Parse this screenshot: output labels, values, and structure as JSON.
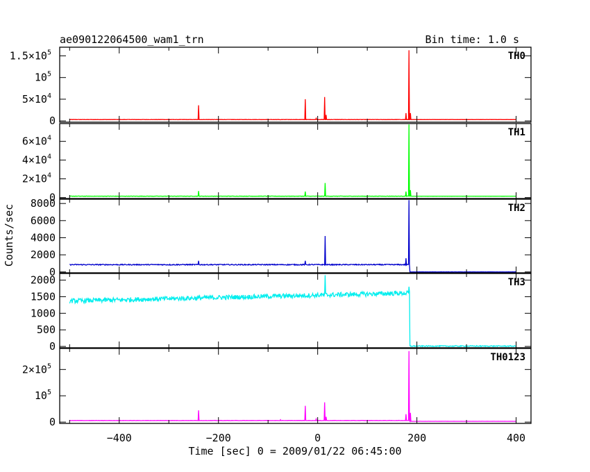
{
  "chart_data": {
    "type": "line",
    "title": "ae090122064500_wam1_trn",
    "bin_time": "Bin time: 1.0 s",
    "xlabel": "Time [sec] 0 = 2009/01/22 06:45:00",
    "ylabel": "Counts/sec",
    "xlim": [
      -520,
      430
    ],
    "x_data_range": [
      -500,
      400
    ],
    "grid": false,
    "x_ticks": [
      {
        "value": -400,
        "label": "−400"
      },
      {
        "value": -200,
        "label": "−200"
      },
      {
        "value": 0,
        "label": "0"
      },
      {
        "value": 200,
        "label": "200"
      },
      {
        "value": 400,
        "label": "400"
      }
    ],
    "panels": [
      {
        "name": "TH0",
        "color": "#ff0000",
        "ylim": [
          -3000,
          170000
        ],
        "baseline": 3000,
        "noise": 300,
        "after_drop": 3000,
        "spikes": [
          [
            -400,
            3500
          ],
          [
            -393,
            3000
          ],
          [
            -240,
            36000
          ],
          [
            -75,
            2500
          ],
          [
            -25,
            50000
          ],
          [
            -3,
            6000
          ],
          [
            14,
            55000
          ],
          [
            17,
            14000
          ],
          [
            178,
            18000
          ],
          [
            184,
            163000
          ],
          [
            187,
            18000
          ]
        ],
        "y_ticks": [
          {
            "value": 150000,
            "label": "1.5×10",
            "exp": "5"
          },
          {
            "value": 100000,
            "label": "10",
            "exp": "5"
          },
          {
            "value": 50000,
            "label": "5×10",
            "exp": "4"
          },
          {
            "value": 0,
            "label": "0",
            "exp": ""
          }
        ]
      },
      {
        "name": "TH1",
        "color": "#00ff00",
        "ylim": [
          -1000,
          79000
        ],
        "baseline": 1500,
        "noise": 200,
        "after_drop": 1500,
        "spikes": [
          [
            -240,
            7000
          ],
          [
            -25,
            6500
          ],
          [
            15,
            15500
          ],
          [
            178,
            6500
          ],
          [
            184,
            78000
          ],
          [
            187,
            8000
          ]
        ],
        "y_ticks": [
          {
            "value": 60000,
            "label": "6×10",
            "exp": "4"
          },
          {
            "value": 40000,
            "label": "4×10",
            "exp": "4"
          },
          {
            "value": 20000,
            "label": "2×10",
            "exp": "4"
          },
          {
            "value": 0,
            "label": "0",
            "exp": ""
          }
        ]
      },
      {
        "name": "TH2",
        "color": "#0000cc",
        "ylim": [
          -100,
          8500
        ],
        "baseline": 850,
        "noise": 60,
        "after_drop": 0,
        "spikes": [
          [
            -240,
            1300
          ],
          [
            -25,
            1300
          ],
          [
            15,
            4200
          ],
          [
            178,
            1600
          ],
          [
            184,
            8400
          ]
        ],
        "y_ticks": [
          {
            "value": 8000,
            "label": "8000",
            "exp": ""
          },
          {
            "value": 6000,
            "label": "6000",
            "exp": ""
          },
          {
            "value": 4000,
            "label": "4000",
            "exp": ""
          },
          {
            "value": 2000,
            "label": "2000",
            "exp": ""
          },
          {
            "value": 0,
            "label": "0",
            "exp": ""
          }
        ]
      },
      {
        "name": "TH3",
        "color": "#00eeee",
        "ylim": [
          -40,
          2200
        ],
        "baseline_start": 1370,
        "baseline_end": 1610,
        "noise": 70,
        "after_drop": 10,
        "spikes": [
          [
            15,
            2150
          ],
          [
            184,
            1800
          ]
        ],
        "y_ticks": [
          {
            "value": 2000,
            "label": "2000",
            "exp": ""
          },
          {
            "value": 1500,
            "label": "1500",
            "exp": ""
          },
          {
            "value": 1000,
            "label": "1000",
            "exp": ""
          },
          {
            "value": 500,
            "label": "500",
            "exp": ""
          },
          {
            "value": 0,
            "label": "0",
            "exp": ""
          }
        ]
      },
      {
        "name": "TH0123",
        "color": "#ff00ff",
        "ylim": [
          -5000,
          280000
        ],
        "baseline": 6000,
        "noise": 500,
        "after_drop": 3000,
        "spikes": [
          [
            -240,
            45000
          ],
          [
            -75,
            9000
          ],
          [
            -25,
            62000
          ],
          [
            -3,
            12000
          ],
          [
            14,
            75000
          ],
          [
            17,
            20000
          ],
          [
            178,
            30000
          ],
          [
            184,
            270000
          ],
          [
            187,
            35000
          ]
        ],
        "y_ticks": [
          {
            "value": 200000,
            "label": "2×10",
            "exp": "5"
          },
          {
            "value": 100000,
            "label": "10",
            "exp": "5"
          },
          {
            "value": 0,
            "label": "0",
            "exp": ""
          }
        ]
      }
    ],
    "drop_time": 185
  }
}
